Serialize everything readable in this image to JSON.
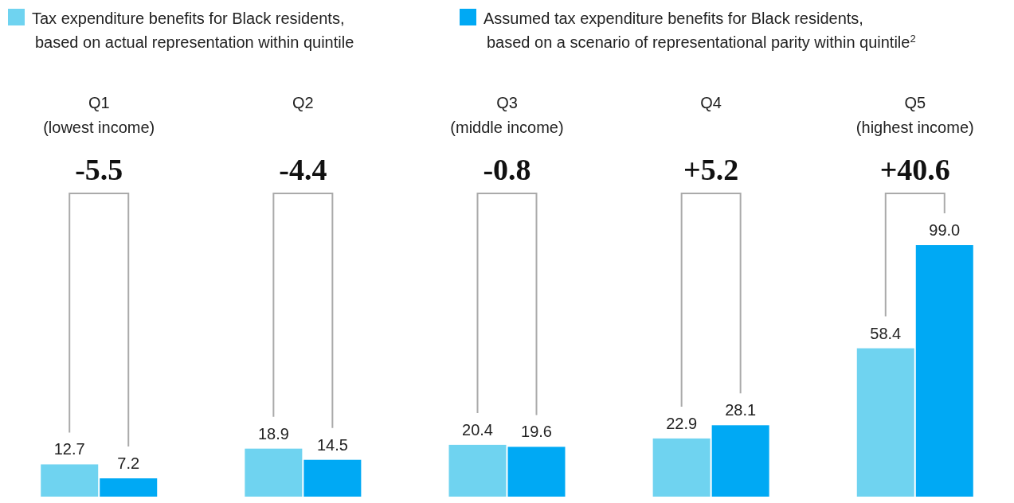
{
  "chart_data": {
    "type": "bar",
    "categories": [
      "Q1\n(lowest income)",
      "Q2",
      "Q3\n(middle income)",
      "Q4",
      "Q5\n(highest income)"
    ],
    "series": [
      {
        "name": "Tax expenditure benefits for Black residents,\nbased on actual representation within quintile",
        "color": "#6fd3f0",
        "values": [
          12.7,
          18.9,
          20.4,
          22.9,
          58.4
        ],
        "value_labels": [
          "12.7",
          "18.9",
          "20.4",
          "22.9",
          "58.4"
        ]
      },
      {
        "name": "Assumed tax expenditure benefits for Black residents,\nbased on a scenario of representational parity within quintile$^{2}$",
        "color": "#00a9f4",
        "values": [
          7.2,
          14.5,
          19.6,
          28.1,
          99.0
        ],
        "value_labels": [
          "7.2",
          "14.5",
          "19.6",
          "28.1",
          "99.0"
        ]
      }
    ],
    "legend": "top left",
    "annotations": [
      "-5.5",
      "-4.4",
      "-0.8",
      "+5.2",
      "+40.6"
    ]
  }
}
